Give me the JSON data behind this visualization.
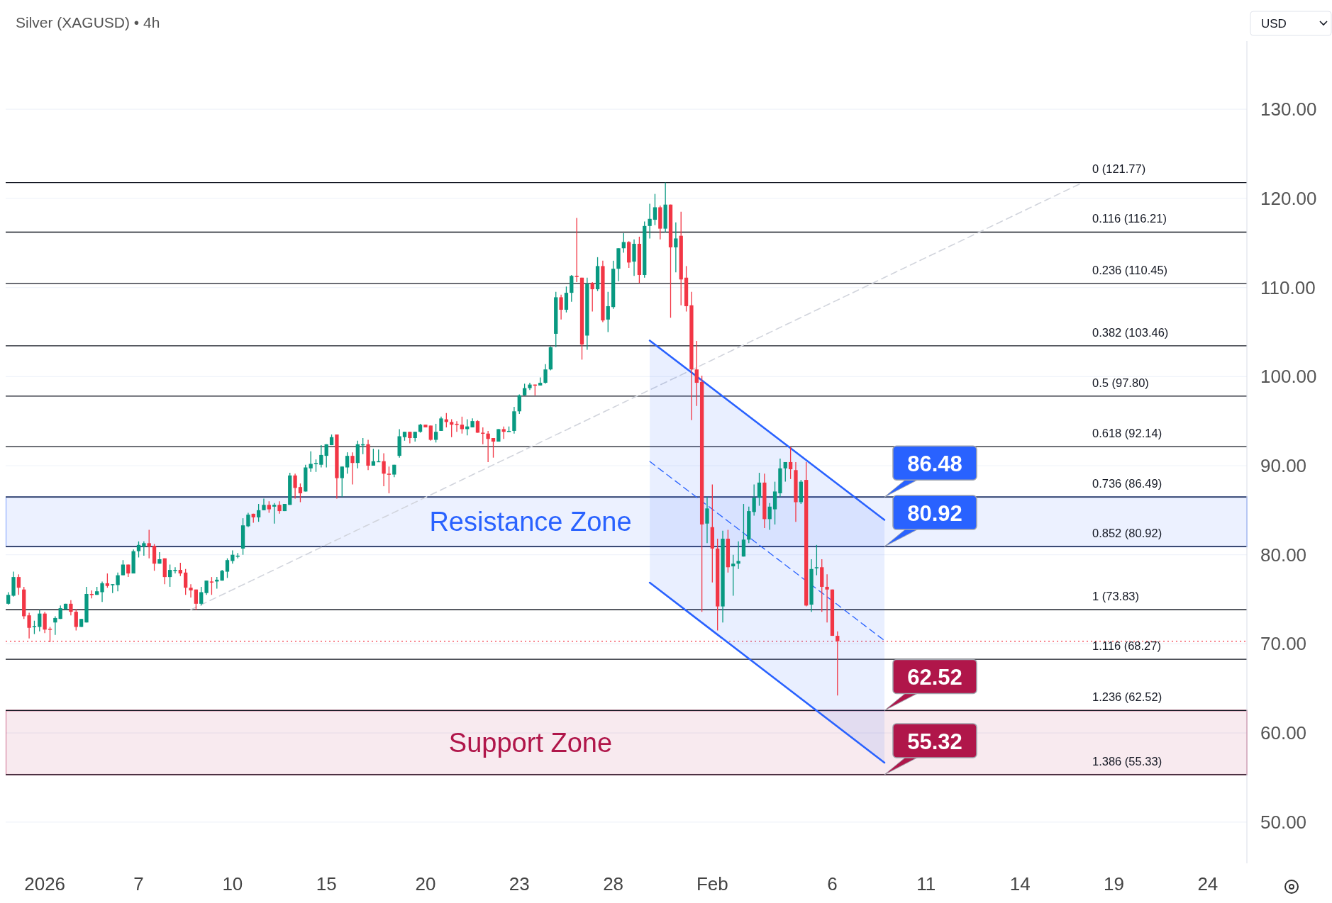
{
  "chart_data": {
    "type": "candlestick",
    "title": "Silver (XAGUSD) • 4h",
    "categories": [
      null,
      null,
      null,
      null,
      null,
      null,
      null,
      "2026",
      null,
      null,
      null,
      null,
      null,
      null,
      null,
      null,
      null,
      null,
      null,
      null,
      null,
      null,
      null,
      null,
      null,
      "7",
      null,
      null,
      null,
      null,
      null,
      null,
      null,
      null,
      null,
      null,
      null,
      null,
      null,
      null,
      null,
      null,
      null,
      "10",
      null,
      null,
      null,
      null,
      null,
      null,
      null,
      null,
      null,
      null,
      null,
      null,
      null,
      null,
      null,
      null,
      null,
      "15",
      null,
      null,
      null,
      null,
      null,
      null,
      null,
      null,
      null,
      null,
      null,
      null,
      null,
      null,
      null,
      null,
      null,
      null,
      "20",
      null,
      null,
      null,
      null,
      null,
      null,
      null,
      null,
      null,
      null,
      null,
      null,
      null,
      null,
      null,
      null,
      null,
      "23",
      null,
      null,
      null,
      null,
      null,
      null,
      null,
      null,
      null,
      null,
      null,
      null,
      null,
      null,
      null,
      null,
      null,
      "28",
      null,
      null,
      null,
      null,
      null,
      null,
      null,
      null,
      null,
      null,
      null,
      null,
      null,
      null,
      null,
      null,
      null,
      null,
      "Feb",
      null,
      null,
      null,
      null,
      null,
      null,
      null,
      null,
      null,
      null,
      null,
      null,
      null,
      null,
      null,
      null,
      null,
      null,
      null,
      null,
      null,
      null,
      "6",
      null,
      null,
      null,
      null,
      null,
      null,
      null,
      null,
      null,
      null,
      null,
      null,
      null,
      null,
      null,
      null,
      null,
      "11",
      null,
      null,
      null,
      null,
      null,
      null,
      null,
      null,
      null,
      null,
      null,
      null,
      null,
      null,
      null,
      null,
      null,
      "14",
      null,
      null,
      null,
      null,
      null,
      null,
      null,
      null,
      null,
      null,
      null,
      null,
      null,
      null,
      null,
      null,
      null,
      "19",
      null,
      null,
      null,
      null,
      null,
      null,
      null,
      null,
      null,
      null,
      null,
      null,
      null,
      null,
      null,
      null,
      null,
      "24",
      null,
      null,
      null,
      null,
      null,
      null,
      null
    ],
    "ylim": [
      45.37,
      137.65
    ],
    "yticks": [
      {
        "value": 50,
        "label": "50.00"
      },
      {
        "value": 60,
        "label": "60.00"
      },
      {
        "value": 70,
        "label": "70.00"
      },
      {
        "value": 80,
        "label": "80.00"
      },
      {
        "value": 90,
        "label": "90.00"
      },
      {
        "value": 100,
        "label": "100.00"
      },
      {
        "value": 110,
        "label": "110.00"
      },
      {
        "value": 120,
        "label": "120.00"
      },
      {
        "value": 130,
        "label": "130.00"
      }
    ],
    "grid": "y",
    "ohlc": [
      [
        74.5,
        75.8,
        74.4,
        75.5
      ],
      [
        75.4,
        78.1,
        75.3,
        77.5
      ],
      [
        77.5,
        77.8,
        75.5,
        76.3
      ],
      [
        76.1,
        76.4,
        72.8,
        73.1
      ],
      [
        73.2,
        73.5,
        70.6,
        71.8
      ],
      [
        71.9,
        72.6,
        71.1,
        72.0
      ],
      [
        71.9,
        73.8,
        71.4,
        73.4
      ],
      [
        73.4,
        73.6,
        71.2,
        71.6
      ],
      [
        71.7,
        71.9,
        70.2,
        71.6
      ],
      [
        72.4,
        73.1,
        71.0,
        72.9
      ],
      [
        72.8,
        74.3,
        72.8,
        74.0
      ],
      [
        73.9,
        74.5,
        73.8,
        74.5
      ],
      [
        74.5,
        74.9,
        73.2,
        73.6
      ],
      [
        73.6,
        73.9,
        71.5,
        71.9
      ],
      [
        71.9,
        72.8,
        71.9,
        72.8
      ],
      [
        72.4,
        76.4,
        72.4,
        75.6
      ],
      [
        75.6,
        76.0,
        75.1,
        75.5
      ],
      [
        75.5,
        76.4,
        75.5,
        75.9
      ],
      [
        75.8,
        77.0,
        74.7,
        76.8
      ],
      [
        76.8,
        77.9,
        76.3,
        76.5
      ],
      [
        76.6,
        76.7,
        75.7,
        76.7
      ],
      [
        76.6,
        78.0,
        75.9,
        77.7
      ],
      [
        77.7,
        79.4,
        77.7,
        78.9
      ],
      [
        78.9,
        78.9,
        77.5,
        77.9
      ],
      [
        77.9,
        80.6,
        77.9,
        80.4
      ],
      [
        80.4,
        81.5,
        79.7,
        81.1
      ],
      [
        80.9,
        81.5,
        79.9,
        81.3
      ],
      [
        81.3,
        82.8,
        79.6,
        80.9
      ],
      [
        81.0,
        81.2,
        78.2,
        79.0
      ],
      [
        79.0,
        80.3,
        79.0,
        79.5
      ],
      [
        79.6,
        79.6,
        76.7,
        77.5
      ],
      [
        77.5,
        78.9,
        76.4,
        78.3
      ],
      [
        78.2,
        78.6,
        77.9,
        78.3
      ],
      [
        78.3,
        79.1,
        77.6,
        77.9
      ],
      [
        78.0,
        78.4,
        75.5,
        76.3
      ],
      [
        76.3,
        76.7,
        75.2,
        76.0
      ],
      [
        76.1,
        76.1,
        73.8,
        74.5
      ],
      [
        74.5,
        76.4,
        74.3,
        75.8
      ],
      [
        75.7,
        77.1,
        75.5,
        77.1
      ],
      [
        77.0,
        77.5,
        75.5,
        76.9
      ],
      [
        77.0,
        77.5,
        76.2,
        77.2
      ],
      [
        77.1,
        78.3,
        77.1,
        78.2
      ],
      [
        78.1,
        79.6,
        77.4,
        79.4
      ],
      [
        79.3,
        80.5,
        79.0,
        80.0
      ],
      [
        79.9,
        80.2,
        79.6,
        79.9
      ],
      [
        80.7,
        84.1,
        80.0,
        83.3
      ],
      [
        83.2,
        84.7,
        83.1,
        84.5
      ],
      [
        84.6,
        84.6,
        83.6,
        84.2
      ],
      [
        84.2,
        85.7,
        83.7,
        85.0
      ],
      [
        85.0,
        86.3,
        85.0,
        85.6
      ],
      [
        85.6,
        86.0,
        84.7,
        85.1
      ],
      [
        85.4,
        85.8,
        83.5,
        85.6
      ],
      [
        85.6,
        86.0,
        84.6,
        84.9
      ],
      [
        84.9,
        85.7,
        84.9,
        85.7
      ],
      [
        85.6,
        89.2,
        85.6,
        88.9
      ],
      [
        88.9,
        89.1,
        86.3,
        87.5
      ],
      [
        87.6,
        88.0,
        85.9,
        86.9
      ],
      [
        87.1,
        90.1,
        87.1,
        89.8
      ],
      [
        89.7,
        91.6,
        89.3,
        90.2
      ],
      [
        90.2,
        90.7,
        89.3,
        90.3
      ],
      [
        90.1,
        92.3,
        89.8,
        91.2
      ],
      [
        91.1,
        92.4,
        89.8,
        92.4
      ],
      [
        92.3,
        93.5,
        92.3,
        93.2
      ],
      [
        93.5,
        93.5,
        86.3,
        88.6
      ],
      [
        88.6,
        89.9,
        86.5,
        89.9
      ],
      [
        89.8,
        91.5,
        89.1,
        91.1
      ],
      [
        91.1,
        91.5,
        87.9,
        90.3
      ],
      [
        90.3,
        92.8,
        89.7,
        92.4
      ],
      [
        92.3,
        93.1,
        91.3,
        92.4
      ],
      [
        92.4,
        92.9,
        89.5,
        90.0
      ],
      [
        90.0,
        91.9,
        90.0,
        90.5
      ],
      [
        90.5,
        91.8,
        90.4,
        90.5
      ],
      [
        90.5,
        91.4,
        87.7,
        89.1
      ],
      [
        89.1,
        89.9,
        86.9,
        89.0
      ],
      [
        89.0,
        90.1,
        88.7,
        90.1
      ],
      [
        91.1,
        94.1,
        90.9,
        93.3
      ],
      [
        93.2,
        93.8,
        92.8,
        93.8
      ],
      [
        93.8,
        93.8,
        92.5,
        93.1
      ],
      [
        93.1,
        93.8,
        92.7,
        93.8
      ],
      [
        93.8,
        94.7,
        93.7,
        94.6
      ],
      [
        94.6,
        94.6,
        94.3,
        94.3
      ],
      [
        94.5,
        94.5,
        92.8,
        92.9
      ],
      [
        92.9,
        94.7,
        92.6,
        93.8
      ],
      [
        93.9,
        95.5,
        93.9,
        95.3
      ],
      [
        95.2,
        95.9,
        94.3,
        94.9
      ],
      [
        94.9,
        95.2,
        93.2,
        94.6
      ],
      [
        94.7,
        95.0,
        93.8,
        94.6
      ],
      [
        94.6,
        95.5,
        93.6,
        94.1
      ],
      [
        94.1,
        95.2,
        93.4,
        94.4
      ],
      [
        94.3,
        95.3,
        94.3,
        95.0
      ],
      [
        95.0,
        95.1,
        93.7,
        93.7
      ],
      [
        93.7,
        94.3,
        92.4,
        93.6
      ],
      [
        93.6,
        93.9,
        90.4,
        93.0
      ],
      [
        93.1,
        93.1,
        90.9,
        92.7
      ],
      [
        92.7,
        94.1,
        92.7,
        94.1
      ],
      [
        94.1,
        94.4,
        93.0,
        93.8
      ],
      [
        93.8,
        94.4,
        93.8,
        93.9
      ],
      [
        93.9,
        96.6,
        93.6,
        96.1
      ],
      [
        96.1,
        98.0,
        95.8,
        97.9
      ],
      [
        97.9,
        99.2,
        97.9,
        98.7
      ],
      [
        98.7,
        99.3,
        98.5,
        99.1
      ],
      [
        99.1,
        99.1,
        97.9,
        99.0
      ],
      [
        99.0,
        99.9,
        99.0,
        99.3
      ],
      [
        99.3,
        101.4,
        99.2,
        100.8
      ],
      [
        100.8,
        103.4,
        100.7,
        103.3
      ],
      [
        104.8,
        109.5,
        103.3,
        108.9
      ],
      [
        108.9,
        109.2,
        106.4,
        107.5
      ],
      [
        107.5,
        110.1,
        107.2,
        109.4
      ],
      [
        109.4,
        111.4,
        108.4,
        111.3
      ],
      [
        111.3,
        117.8,
        110.6,
        111.2
      ],
      [
        111.1,
        111.1,
        101.9,
        103.6
      ],
      [
        104.6,
        111.1,
        103.0,
        110.4
      ],
      [
        110.5,
        110.6,
        107.3,
        109.8
      ],
      [
        109.8,
        113.4,
        109.6,
        112.4
      ],
      [
        112.4,
        113.0,
        106.1,
        106.3
      ],
      [
        106.4,
        109.5,
        105.0,
        107.9
      ],
      [
        107.8,
        113.0,
        107.6,
        112.1
      ],
      [
        112.1,
        114.4,
        110.7,
        114.4
      ],
      [
        114.4,
        116.1,
        113.9,
        115.1
      ],
      [
        115.1,
        115.2,
        112.2,
        112.8
      ],
      [
        112.9,
        115.4,
        111.3,
        114.9
      ],
      [
        114.9,
        115.7,
        110.5,
        111.4
      ],
      [
        111.4,
        117.4,
        111.1,
        116.9
      ],
      [
        116.9,
        119.4,
        115.5,
        117.7
      ],
      [
        117.6,
        120.5,
        117.0,
        119.0
      ],
      [
        119.0,
        119.2,
        115.4,
        116.6
      ],
      [
        116.6,
        121.77,
        116.2,
        119.3
      ],
      [
        119.3,
        119.3,
        106.6,
        114.5
      ],
      [
        114.5,
        117.3,
        111.7,
        115.5
      ],
      [
        115.8,
        118.5,
        108.0,
        110.9
      ],
      [
        111.1,
        112.4,
        107.3,
        107.9
      ],
      [
        108.0,
        109.5,
        95.1,
        100.8
      ],
      [
        100.8,
        104.0,
        96.7,
        99.3
      ],
      [
        99.4,
        100.1,
        73.6,
        83.4
      ],
      [
        83.5,
        86.5,
        81.3,
        85.2
      ],
      [
        83.1,
        87.9,
        76.9,
        80.7
      ],
      [
        80.7,
        81.8,
        71.5,
        74.2
      ],
      [
        74.2,
        82.7,
        72.4,
        81.8
      ],
      [
        81.8,
        82.8,
        78.0,
        78.6
      ],
      [
        78.7,
        80.0,
        75.4,
        79.0
      ],
      [
        79.0,
        81.5,
        78.4,
        79.3
      ],
      [
        79.8,
        85.7,
        79.8,
        81.7
      ],
      [
        81.7,
        85.4,
        81.3,
        84.9
      ],
      [
        84.8,
        87.9,
        84.4,
        86.4
      ],
      [
        86.4,
        89.2,
        85.5,
        88.1
      ],
      [
        88.1,
        89.1,
        83.0,
        84.0
      ],
      [
        84.0,
        85.8,
        82.8,
        85.4
      ],
      [
        85.1,
        88.2,
        83.4,
        87.1
      ],
      [
        86.9,
        90.8,
        86.5,
        89.7
      ],
      [
        89.7,
        90.4,
        88.2,
        90.4
      ],
      [
        90.4,
        92.1,
        88.5,
        89.6
      ],
      [
        89.5,
        90.4,
        83.7,
        85.9
      ],
      [
        85.9,
        88.4,
        85.7,
        88.2
      ],
      [
        88.4,
        90.4,
        74.2,
        74.3
      ],
      [
        74.4,
        79.5,
        73.6,
        78.4
      ],
      [
        78.6,
        81.1,
        77.7,
        78.6
      ],
      [
        78.6,
        79.5,
        73.6,
        76.4
      ],
      [
        76.4,
        77.8,
        72.4,
        76.1
      ],
      [
        76.1,
        76.1,
        70.9,
        70.9
      ],
      [
        70.9,
        71.4,
        64.2,
        70.3
      ],
      null,
      null,
      null,
      null,
      null,
      null,
      null,
      null,
      null,
      null,
      null,
      null,
      null,
      null,
      null,
      null,
      null,
      null,
      null,
      null,
      null,
      null,
      null,
      null,
      null,
      null,
      null,
      null,
      null,
      null,
      null,
      null,
      null,
      null,
      null,
      null,
      null,
      null,
      null,
      null,
      null,
      null,
      null,
      null,
      null,
      null,
      null,
      null,
      null,
      null,
      null,
      null,
      null,
      null,
      null,
      null,
      null,
      null,
      null,
      null,
      null,
      null,
      null,
      null,
      null,
      null,
      null,
      null,
      null,
      null,
      null,
      null,
      null,
      null,
      null,
      null,
      null,
      null
    ],
    "series": [
      {
        "type": "line",
        "color": "#d1d4dc",
        "line_style": "dashed",
        "values": [
          null,
          null,
          null,
          null,
          null,
          null,
          null,
          null,
          null,
          null,
          null,
          null,
          null,
          null,
          null,
          null,
          null,
          null,
          null,
          null,
          null,
          null,
          null,
          null,
          null,
          null,
          null,
          null,
          null,
          null,
          null,
          null,
          null,
          null,
          null,
          73.83,
          null,
          null,
          null,
          null,
          null,
          null,
          null,
          null,
          null,
          null,
          null,
          null,
          null,
          null,
          null,
          null,
          null,
          null,
          null,
          null,
          null,
          null,
          null,
          null,
          null,
          null,
          null,
          null,
          null,
          null,
          null,
          null,
          null,
          null,
          null,
          null,
          null,
          null,
          null,
          null,
          null,
          null,
          null,
          null,
          null,
          null,
          null,
          null,
          null,
          null,
          null,
          null,
          null,
          null,
          null,
          null,
          null,
          null,
          null,
          null,
          null,
          null,
          null,
          null,
          null,
          null,
          null,
          null,
          null,
          null,
          null,
          null,
          null,
          null,
          null,
          null,
          null,
          null,
          null,
          null,
          null,
          null,
          null,
          null,
          null,
          null,
          null,
          null,
          null,
          null,
          null,
          null,
          null,
          null,
          null,
          null,
          null,
          null,
          null,
          null,
          null,
          null,
          null,
          null,
          null,
          null,
          null,
          null,
          null,
          null,
          null,
          null,
          null,
          null,
          null,
          null,
          null,
          null,
          null,
          null,
          null,
          null,
          null,
          null,
          null,
          null,
          null,
          null,
          null,
          null,
          null,
          null,
          null,
          null,
          null,
          null,
          null,
          null,
          null,
          null,
          null,
          null,
          null,
          null,
          null,
          null,
          null,
          null,
          null,
          null,
          null,
          null,
          null,
          null,
          null,
          null,
          null,
          null,
          null,
          null,
          null,
          null,
          null,
          null,
          null,
          null,
          null,
          null,
          null,
          null,
          121.77,
          null,
          null,
          null,
          null,
          null,
          null,
          null,
          null,
          null,
          null,
          null,
          null,
          null,
          null,
          null,
          null,
          null,
          null,
          null,
          null,
          null,
          null,
          null,
          null,
          null,
          null,
          null,
          null,
          null,
          null,
          null
        ]
      },
      {
        "type": "line",
        "color": "#2962ff",
        "line_style": "dashed",
        "values": [
          null,
          null,
          null,
          null,
          null,
          null,
          null,
          null,
          null,
          null,
          null,
          null,
          null,
          null,
          null,
          null,
          null,
          null,
          null,
          null,
          null,
          null,
          null,
          null,
          null,
          null,
          null,
          null,
          null,
          null,
          null,
          null,
          null,
          null,
          null,
          null,
          null,
          null,
          null,
          null,
          null,
          null,
          null,
          null,
          null,
          null,
          null,
          null,
          null,
          null,
          null,
          null,
          null,
          null,
          null,
          null,
          null,
          null,
          null,
          null,
          null,
          null,
          null,
          null,
          null,
          null,
          null,
          null,
          null,
          null,
          null,
          null,
          null,
          null,
          null,
          null,
          null,
          null,
          null,
          null,
          null,
          null,
          null,
          null,
          null,
          null,
          null,
          null,
          null,
          null,
          null,
          null,
          null,
          null,
          null,
          null,
          null,
          null,
          null,
          null,
          null,
          null,
          null,
          null,
          null,
          null,
          null,
          null,
          null,
          null,
          null,
          null,
          null,
          null,
          null,
          null,
          null,
          null,
          null,
          null,
          null,
          null,
          null,
          90.47,
          null,
          null,
          null,
          null,
          null,
          null,
          null,
          null,
          null,
          null,
          null,
          null,
          null,
          null,
          null,
          null,
          null,
          null,
          null,
          null,
          null,
          null,
          null,
          null,
          null,
          null,
          null,
          null,
          null,
          null,
          null,
          null,
          null,
          null,
          null,
          null,
          null,
          null,
          null,
          null,
          null,
          null,
          null,
          null,
          70.37,
          null,
          null,
          null,
          null,
          null,
          null,
          null,
          null,
          null,
          null,
          null,
          null,
          null,
          null,
          null,
          null,
          null,
          null,
          null,
          null,
          null,
          null,
          null,
          null,
          null,
          null,
          null,
          null,
          null,
          null,
          null,
          null,
          null,
          null,
          null,
          null,
          null,
          null,
          null,
          null,
          null,
          null,
          null,
          null,
          null,
          null,
          null,
          null,
          null,
          null,
          null,
          null,
          null,
          null,
          null,
          null,
          null,
          null,
          null,
          null,
          null,
          null,
          null,
          null,
          null,
          null,
          null,
          null,
          null
        ],
        "lower": [
          null,
          null,
          null,
          null,
          null,
          null,
          null,
          null,
          null,
          null,
          null,
          null,
          null,
          null,
          null,
          null,
          null,
          null,
          null,
          null,
          null,
          null,
          null,
          null,
          null,
          null,
          null,
          null,
          null,
          null,
          null,
          null,
          null,
          null,
          null,
          null,
          null,
          null,
          null,
          null,
          null,
          null,
          null,
          null,
          null,
          null,
          null,
          null,
          null,
          null,
          null,
          null,
          null,
          null,
          null,
          null,
          null,
          null,
          null,
          null,
          null,
          null,
          null,
          null,
          null,
          null,
          null,
          null,
          null,
          null,
          null,
          null,
          null,
          null,
          null,
          null,
          null,
          null,
          null,
          null,
          null,
          null,
          null,
          null,
          null,
          null,
          null,
          null,
          null,
          null,
          null,
          null,
          null,
          null,
          null,
          null,
          null,
          null,
          null,
          null,
          null,
          null,
          null,
          null,
          null,
          null,
          null,
          null,
          null,
          null,
          null,
          null,
          null,
          null,
          null,
          null,
          null,
          null,
          null,
          null,
          null,
          null,
          null,
          76.87,
          null,
          null,
          null,
          null,
          null,
          null,
          null,
          null,
          null,
          null,
          null,
          null,
          null,
          null,
          null,
          null,
          null,
          null,
          null,
          null,
          null,
          null,
          null,
          null,
          null,
          null,
          null,
          null,
          null,
          null,
          null,
          null,
          null,
          null,
          null,
          null,
          null,
          null,
          null,
          null,
          null,
          null,
          null,
          null,
          56.67,
          null,
          null,
          null,
          null,
          null,
          null,
          null,
          null,
          null,
          null,
          null,
          null,
          null,
          null,
          null,
          null,
          null,
          null,
          null,
          null,
          null,
          null,
          null,
          null,
          null,
          null,
          null,
          null,
          null,
          null,
          null,
          null,
          null,
          null,
          null,
          null,
          null,
          null,
          null,
          null,
          null,
          null,
          null,
          null,
          null,
          null,
          null,
          null,
          null,
          null,
          null,
          null,
          null,
          null,
          null,
          null,
          null,
          null,
          null,
          null,
          null,
          null,
          null,
          null,
          null,
          null,
          null,
          null,
          null
        ],
        "upper": [
          null,
          null,
          null,
          null,
          null,
          null,
          null,
          null,
          null,
          null,
          null,
          null,
          null,
          null,
          null,
          null,
          null,
          null,
          null,
          null,
          null,
          null,
          null,
          null,
          null,
          null,
          null,
          null,
          null,
          null,
          null,
          null,
          null,
          null,
          null,
          null,
          null,
          null,
          null,
          null,
          null,
          null,
          null,
          null,
          null,
          null,
          null,
          null,
          null,
          null,
          null,
          null,
          null,
          null,
          null,
          null,
          null,
          null,
          null,
          null,
          null,
          null,
          null,
          null,
          null,
          null,
          null,
          null,
          null,
          null,
          null,
          null,
          null,
          null,
          null,
          null,
          null,
          null,
          null,
          null,
          null,
          null,
          null,
          null,
          null,
          null,
          null,
          null,
          null,
          null,
          null,
          null,
          null,
          null,
          null,
          null,
          null,
          null,
          null,
          null,
          null,
          null,
          null,
          null,
          null,
          null,
          null,
          null,
          null,
          null,
          null,
          null,
          null,
          null,
          null,
          null,
          null,
          null,
          null,
          null,
          null,
          null,
          null,
          104.04,
          null,
          null,
          null,
          null,
          null,
          null,
          null,
          null,
          null,
          null,
          null,
          null,
          null,
          null,
          null,
          null,
          null,
          null,
          null,
          null,
          null,
          null,
          null,
          null,
          null,
          null,
          null,
          null,
          null,
          null,
          null,
          null,
          null,
          null,
          null,
          null,
          null,
          null,
          null,
          null,
          null,
          null,
          null,
          null,
          83.92,
          null,
          null,
          null,
          null,
          null,
          null,
          null,
          null,
          null,
          null,
          null,
          null,
          null,
          null,
          null,
          null,
          null,
          null,
          null,
          null,
          null,
          null,
          null,
          null,
          null,
          null,
          null,
          null,
          null,
          null,
          null,
          null,
          null,
          null,
          null,
          null,
          null,
          null,
          null,
          null,
          null,
          null,
          null,
          null,
          null,
          null,
          null,
          null,
          null,
          null,
          null,
          null,
          null,
          null,
          null,
          null,
          null,
          null,
          null,
          null,
          null,
          null,
          null,
          null,
          null,
          null,
          null,
          null,
          null
        ]
      }
    ],
    "bands": [
      {
        "axis": "y",
        "from": 80.92,
        "to": 86.48,
        "label": "Resistance Zone",
        "color": "#2962ff"
      },
      {
        "axis": "y",
        "from": 55.32,
        "to": 62.52,
        "label": "Support Zone",
        "color": "#b0164a"
      }
    ],
    "ref_lines": [
      {
        "axis": "y",
        "value": 121.77,
        "label": "0 (121.77)",
        "color": "#131722"
      },
      {
        "axis": "y",
        "value": 116.21,
        "label": "0.116 (116.21)",
        "color": "#131722"
      },
      {
        "axis": "y",
        "value": 110.45,
        "label": "0.236 (110.45)",
        "color": "#131722"
      },
      {
        "axis": "y",
        "value": 103.46,
        "label": "0.382 (103.46)",
        "color": "#131722"
      },
      {
        "axis": "y",
        "value": 97.8,
        "label": "0.5 (97.80)",
        "color": "#131722"
      },
      {
        "axis": "y",
        "value": 92.14,
        "label": "0.618 (92.14)",
        "color": "#131722"
      },
      {
        "axis": "y",
        "value": 86.49,
        "label": "0.736 (86.49)",
        "color": "#131722"
      },
      {
        "axis": "y",
        "value": 80.92,
        "label": "0.852 (80.92)",
        "color": "#131722"
      },
      {
        "axis": "y",
        "value": 73.83,
        "label": "1 (73.83)",
        "color": "#131722"
      },
      {
        "axis": "y",
        "value": 68.27,
        "label": "1.116 (68.27)",
        "color": "#131722"
      },
      {
        "axis": "y",
        "value": 62.52,
        "label": "1.236 (62.52)",
        "color": "#131722"
      },
      {
        "axis": "y",
        "value": 55.33,
        "label": "1.386 (55.33)",
        "color": "#131722"
      },
      {
        "axis": "y",
        "value": 70.3,
        "color": "#f23645",
        "line_style": "dotted"
      }
    ],
    "annotations": [
      "USD",
      {
        "text": "86.48",
        "y": 86.48
      },
      {
        "text": "80.92",
        "y": 80.92
      },
      {
        "text": "62.52",
        "y": 62.52
      },
      {
        "text": "55.32",
        "y": 55.32
      }
    ]
  }
}
